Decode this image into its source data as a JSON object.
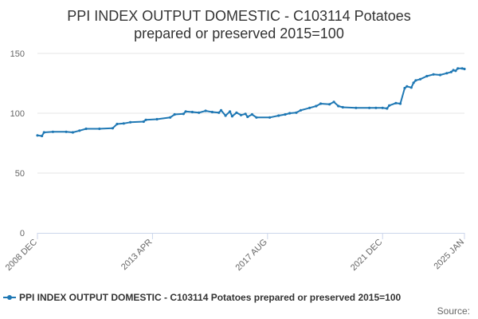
{
  "chart_data": {
    "type": "line",
    "title": "PPI INDEX OUTPUT DOMESTIC - C103114 Potatoes prepared or preserved 2015=100",
    "title_lines": [
      "PPI INDEX OUTPUT DOMESTIC - C103114 Potatoes",
      "prepared or preserved 2015=100"
    ],
    "xlabel": "",
    "ylabel": "",
    "ylim": [
      0,
      150
    ],
    "yticks": [
      0,
      50,
      100,
      150
    ],
    "x_range": [
      "2008 DEC",
      "2025 JAN"
    ],
    "xticks": [
      "2008 DEC",
      "2013 APR",
      "2017 AUG",
      "2021 DEC",
      "2025 JAN"
    ],
    "grid": "horizontal",
    "legend_position": "bottom",
    "series": [
      {
        "name": "PPI INDEX OUTPUT DOMESTIC - C103114 Potatoes prepared or preserved 2015=100",
        "color": "#1f78b4",
        "points": [
          [
            "2008 DEC",
            81.5
          ],
          [
            "2009 FEB",
            81.0
          ],
          [
            "2009 MAR",
            84.0
          ],
          [
            "2009 JUL",
            84.5
          ],
          [
            "2010 JAN",
            84.5
          ],
          [
            "2010 APR",
            84.0
          ],
          [
            "2010 JUL",
            85.5
          ],
          [
            "2010 OCT",
            87.0
          ],
          [
            "2011 APR",
            87.0
          ],
          [
            "2011 OCT",
            87.5
          ],
          [
            "2011 DEC",
            91.0
          ],
          [
            "2012 MAR",
            91.5
          ],
          [
            "2012 JUN",
            92.5
          ],
          [
            "2012 DEC",
            93.0
          ],
          [
            "2013 JAN",
            94.5
          ],
          [
            "2013 JUN",
            95.0
          ],
          [
            "2013 DEC",
            96.5
          ],
          [
            "2014 FEB",
            99.0
          ],
          [
            "2014 JUN",
            99.5
          ],
          [
            "2014 JUL",
            101.5
          ],
          [
            "2014 OCT",
            101.0
          ],
          [
            "2015 JAN",
            100.5
          ],
          [
            "2015 APR",
            102.0
          ],
          [
            "2015 JUL",
            101.0
          ],
          [
            "2015 OCT",
            100.5
          ],
          [
            "2015 NOV",
            102.5
          ],
          [
            "2016 JAN",
            98.0
          ],
          [
            "2016 MAR",
            101.5
          ],
          [
            "2016 APR",
            97.5
          ],
          [
            "2016 JUN",
            100.5
          ],
          [
            "2016 AUG",
            98.5
          ],
          [
            "2016 OCT",
            99.5
          ],
          [
            "2016 NOV",
            97.0
          ],
          [
            "2017 JAN",
            99.0
          ],
          [
            "2017 MAR",
            96.5
          ],
          [
            "2017 SEP",
            96.5
          ],
          [
            "2018 JAN",
            98.0
          ],
          [
            "2018 APR",
            99.0
          ],
          [
            "2018 JUN",
            100.0
          ],
          [
            "2018 SEP",
            100.5
          ],
          [
            "2018 NOV",
            102.5
          ],
          [
            "2019 MAR",
            104.5
          ],
          [
            "2019 JUN",
            106.0
          ],
          [
            "2019 AUG",
            108.0
          ],
          [
            "2019 DEC",
            107.5
          ],
          [
            "2020 FEB",
            109.5
          ],
          [
            "2020 APR",
            106.0
          ],
          [
            "2020 JUN",
            105.0
          ],
          [
            "2020 DEC",
            104.5
          ],
          [
            "2021 JUN",
            104.5
          ],
          [
            "2021 SEP",
            104.5
          ],
          [
            "2021 DEC",
            104.5
          ],
          [
            "2022 FEB",
            104.0
          ],
          [
            "2022 MAR",
            106.5
          ],
          [
            "2022 JUN",
            108.5
          ],
          [
            "2022 AUG",
            108.0
          ],
          [
            "2022 OCT",
            121.0
          ],
          [
            "2022 NOV",
            122.5
          ],
          [
            "2023 JAN",
            121.5
          ],
          [
            "2023 FEB",
            125.5
          ],
          [
            "2023 MAR",
            127.5
          ],
          [
            "2023 MAY",
            128.5
          ],
          [
            "2023 AUG",
            131.0
          ],
          [
            "2023 NOV",
            132.5
          ],
          [
            "2024 FEB",
            132.0
          ],
          [
            "2024 MAY",
            133.5
          ],
          [
            "2024 JUL",
            134.5
          ],
          [
            "2024 AUG",
            136.0
          ],
          [
            "2024 SEP",
            135.5
          ],
          [
            "2024 OCT",
            137.5
          ],
          [
            "2024 DEC",
            137.5
          ],
          [
            "2025 JAN",
            137.0
          ]
        ]
      }
    ]
  },
  "legend": {
    "label": "PPI INDEX OUTPUT DOMESTIC - C103114 Potatoes prepared or preserved 2015=100"
  },
  "source": {
    "label": "Source:"
  }
}
